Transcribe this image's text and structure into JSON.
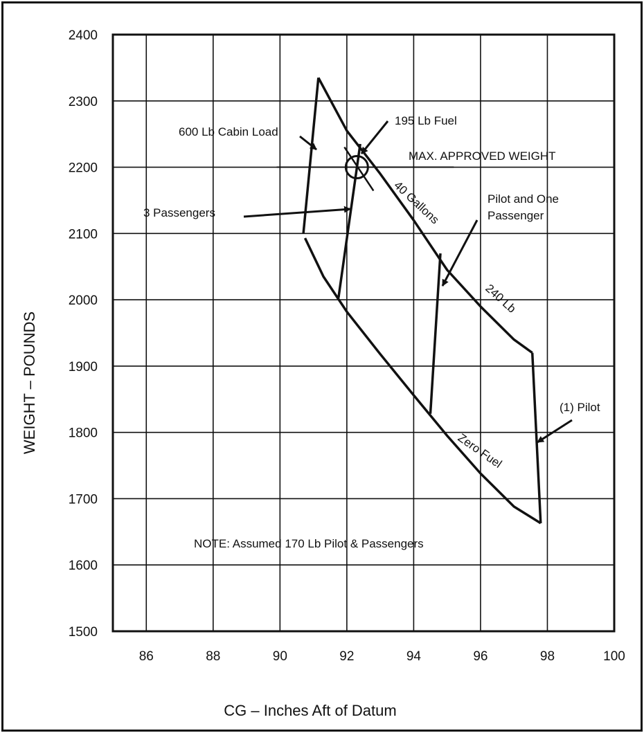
{
  "chart_data": {
    "type": "line",
    "xlabel": "CG – Inches Aft of Datum",
    "ylabel": "WEIGHT – POUNDS",
    "xlim": [
      85,
      100
    ],
    "ylim": [
      1500,
      2400
    ],
    "x_ticks": [
      86,
      88,
      90,
      92,
      94,
      96,
      98,
      100
    ],
    "y_ticks": [
      1500,
      1600,
      1700,
      1800,
      1900,
      2000,
      2100,
      2200,
      2300,
      2400
    ],
    "grid": true,
    "colors": {
      "line": "#111111",
      "background": "#ffffff"
    },
    "series": [
      {
        "name": "Zero Fuel",
        "points": [
          [
            90.75,
            2093
          ],
          [
            91.3,
            2035
          ],
          [
            92.0,
            1982
          ],
          [
            93.0,
            1918
          ],
          [
            94.0,
            1856
          ],
          [
            95.0,
            1795
          ],
          [
            96.0,
            1738
          ],
          [
            97.0,
            1688
          ],
          [
            97.8,
            1663
          ]
        ]
      },
      {
        "name": "240 Lb",
        "points": [
          [
            91.15,
            2335
          ],
          [
            92.0,
            2255
          ],
          [
            93.0,
            2190
          ],
          [
            94.0,
            2120
          ],
          [
            95.0,
            2045
          ],
          [
            96.0,
            1990
          ],
          [
            97.0,
            1940
          ],
          [
            97.55,
            1920
          ]
        ]
      },
      {
        "points": [
          [
            97.55,
            1920
          ],
          [
            97.8,
            1663
          ]
        ]
      },
      {
        "points": [
          [
            91.15,
            2335
          ],
          [
            90.7,
            2100
          ]
        ]
      },
      {
        "points": [
          [
            91.75,
            2003
          ],
          [
            92.4,
            2235
          ]
        ]
      },
      {
        "points": [
          [
            94.5,
            1828
          ],
          [
            94.8,
            2070
          ]
        ]
      }
    ],
    "loading_point": {
      "x": 92.3,
      "y": 2200
    },
    "max_weight_line": {
      "y": 2200,
      "x_from": 89.9,
      "x_to": 95.2
    },
    "annotations": {
      "cabin_load": "600 Lb Cabin Load",
      "fuel_195": "195 Lb  Fuel",
      "max_weight": "MAX. APPROVED WEIGHT",
      "passengers3": "3 Passengers",
      "gallons": "40 Gallons",
      "pilot_one_1": "Pilot and One",
      "pilot_one_2": "Passenger",
      "lb240": "240 Lb",
      "pilot": "(1) Pilot",
      "zero_fuel": "Zero Fuel",
      "note": "NOTE: Assumed 170 Lb Pilot & Passengers"
    }
  }
}
